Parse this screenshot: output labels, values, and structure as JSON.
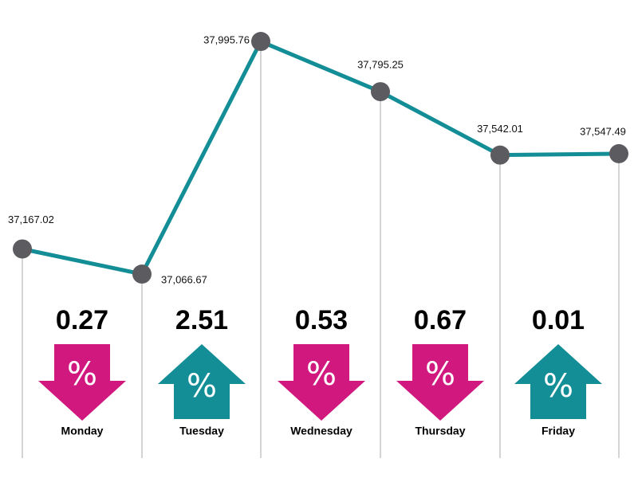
{
  "chart_data": {
    "type": "line",
    "categories": [
      "Monday",
      "Tuesday",
      "Wednesday",
      "Thursday",
      "Friday"
    ],
    "points": [
      {
        "label": "37,167.02",
        "value": 37167.02
      },
      {
        "label": "37,066.67",
        "value": 37066.67
      },
      {
        "label": "37,995.76",
        "value": 37995.76
      },
      {
        "label": "37,795.25",
        "value": 37795.25
      },
      {
        "label": "37,542.01",
        "value": 37542.01
      },
      {
        "label": "37,547.49",
        "value": 37547.49
      }
    ],
    "changes": [
      {
        "day": "Monday",
        "percent": "0.27",
        "direction": "down"
      },
      {
        "day": "Tuesday",
        "percent": "2.51",
        "direction": "up"
      },
      {
        "day": "Wednesday",
        "percent": "0.53",
        "direction": "down"
      },
      {
        "day": "Thursday",
        "percent": "0.67",
        "direction": "down"
      },
      {
        "day": "Friday",
        "percent": "0.01",
        "direction": "up"
      }
    ],
    "ylim": [
      37000,
      38050
    ],
    "grid": false,
    "legend": "none"
  },
  "colors": {
    "line": "#138d96",
    "marker": "#5c5c60",
    "down": "#d1187e",
    "up": "#138d96",
    "guide": "#b8b8b8"
  },
  "icons": {
    "arrow_symbol": "%"
  }
}
